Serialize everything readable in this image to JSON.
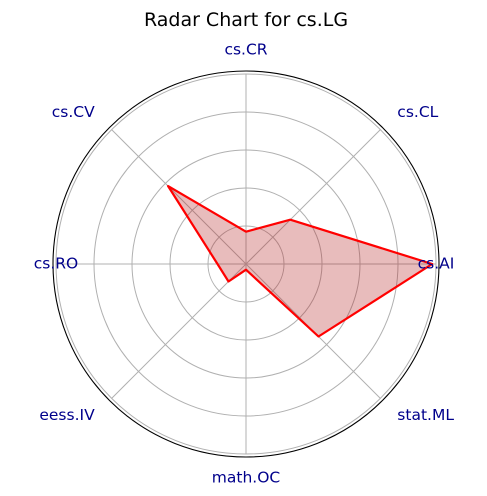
{
  "chart_data": {
    "type": "radar",
    "title": "Radar Chart for cs.LG",
    "categories": [
      "cs.AI",
      "cs.CL",
      "cs.CR",
      "cs.CV",
      "cs.RO",
      "eess.IV",
      "math.OC",
      "stat.ML"
    ],
    "series": [
      {
        "values": [
          0.98,
          0.33,
          0.17,
          0.58,
          0.15,
          0.13,
          0.03,
          0.54
        ]
      }
    ],
    "rlim": [
      0,
      1
    ],
    "grid_rings": [
      0.2,
      0.4,
      0.6,
      0.8,
      1.0
    ],
    "grid": true,
    "colors": {
      "line": "#ff0000",
      "fill": "#b22222",
      "fill_opacity": 0.3,
      "label": "#00008b",
      "grid": "#b0b0b0"
    }
  }
}
